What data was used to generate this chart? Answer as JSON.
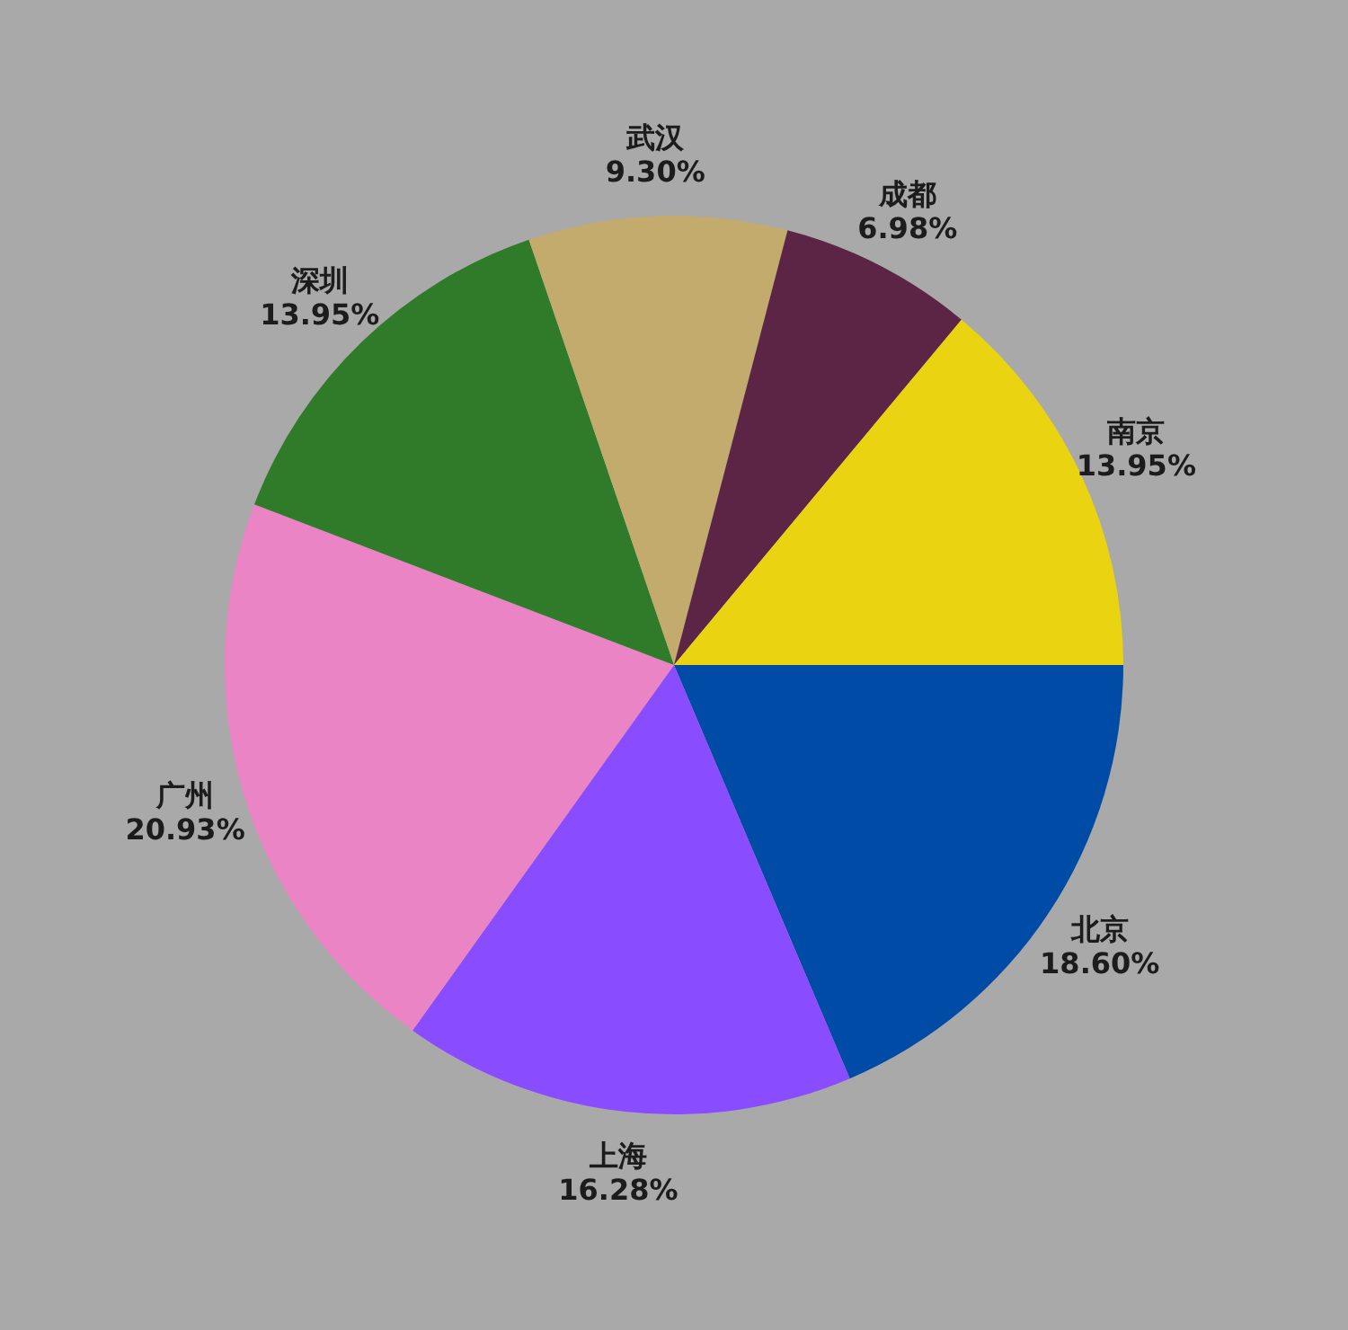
{
  "chart_data": {
    "type": "pie",
    "categories": [
      "北京",
      "上海",
      "广州",
      "深圳",
      "武汉",
      "成都",
      "南京"
    ],
    "values": [
      18.6,
      16.28,
      20.93,
      13.95,
      9.3,
      6.98,
      13.95
    ],
    "colors": [
      "#004ba6",
      "#894cff",
      "#ea84c4",
      "#2f7b2a",
      "#c2ab6c",
      "#5d2545",
      "#ead412"
    ],
    "value_labels": [
      "18.60%",
      "16.28%",
      "20.93%",
      "13.95%",
      "9.30%",
      "6.98%",
      "13.95%"
    ]
  }
}
